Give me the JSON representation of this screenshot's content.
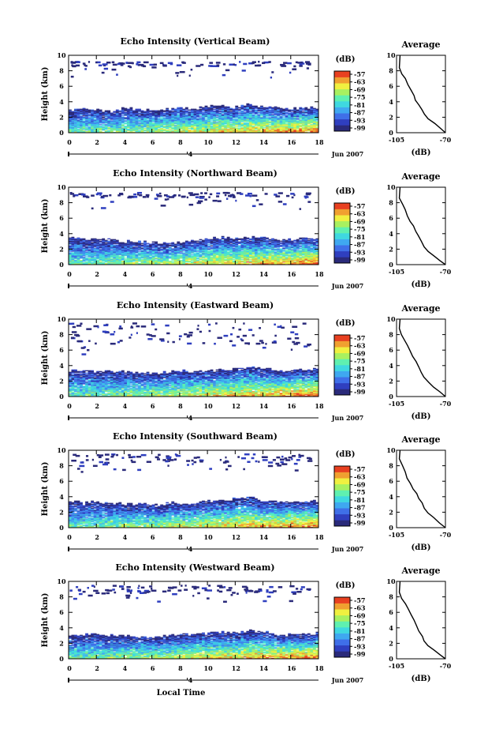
{
  "figure": {
    "xlabel": "Local Time",
    "date_label": "Jun 2007",
    "day_marker": "4",
    "x_ticks": [
      "0",
      "2",
      "4",
      "6",
      "8",
      "10",
      "12",
      "14",
      "16",
      "18"
    ],
    "y_ticks": [
      "0",
      "2",
      "4",
      "6",
      "8",
      "10"
    ],
    "ylabel": "Height (km)",
    "cbar_unit": "(dB)",
    "cbar_ticks": [
      "-57",
      "-63",
      "-69",
      "-75",
      "-81",
      "-87",
      "-93",
      "-99"
    ],
    "avg_title": "Average",
    "avg_xticks": [
      "-105",
      "-70"
    ],
    "avg_xlabel": "(dB)",
    "colors": {
      "colormap": [
        "#2a2a7a",
        "#2f3fbf",
        "#3f6fe8",
        "#3fa8f0",
        "#3fd8e0",
        "#5ff0b0",
        "#a8f060",
        "#f0f040",
        "#f0a030",
        "#e84020"
      ]
    }
  },
  "chart_data": [
    {
      "type": "heatmap",
      "title": "Echo Intensity (Vertical Beam)",
      "xlabel": "",
      "ylabel": "Height (km)",
      "xlim": [
        0,
        18
      ],
      "ylim": [
        0,
        10
      ],
      "clim": [
        -99,
        -57
      ],
      "profile_top_km": [
        2.9,
        3.1,
        3.0,
        2.8,
        3.2,
        3.0,
        2.9,
        3.0,
        3.2,
        3.1,
        3.4,
        3.5,
        3.3,
        3.6,
        3.4,
        3.2,
        3.0,
        3.3
      ],
      "upper_cloud_km": [
        8.7,
        9.3
      ]
    },
    {
      "type": "line",
      "title": "Average",
      "xlabel": "(dB)",
      "xlim": [
        -105,
        -70
      ],
      "ylim": [
        0,
        10
      ],
      "x": [
        -70,
        -74,
        -78,
        -82,
        -85,
        -87,
        -89,
        -91,
        -93,
        -95,
        -97,
        -99,
        -101,
        -103
      ],
      "y": [
        0,
        0.6,
        1.2,
        1.8,
        2.4,
        3.0,
        3.6,
        4.2,
        4.8,
        5.5,
        6.2,
        7.0,
        7.6,
        8.4
      ]
    },
    {
      "type": "heatmap",
      "title": "Echo Intensity (Northward Beam)",
      "xlabel": "",
      "ylabel": "Height (km)",
      "xlim": [
        0,
        18
      ],
      "ylim": [
        0,
        10
      ],
      "clim": [
        -99,
        -57
      ],
      "profile_top_km": [
        3.6,
        3.4,
        3.3,
        3.2,
        3.0,
        3.0,
        2.9,
        2.8,
        2.9,
        3.1,
        3.3,
        3.5,
        3.4,
        3.6,
        3.5,
        3.3,
        3.2,
        3.4
      ],
      "upper_cloud_km": [
        8.8,
        9.4
      ]
    },
    {
      "type": "line",
      "title": "Average",
      "xlabel": "(dB)",
      "xlim": [
        -105,
        -70
      ],
      "ylim": [
        0,
        10
      ],
      "x": [
        -70,
        -74,
        -78,
        -82,
        -85,
        -87,
        -89,
        -91,
        -93,
        -95,
        -97,
        -99,
        -101,
        -103
      ],
      "y": [
        0,
        0.5,
        1.1,
        1.7,
        2.3,
        3.0,
        3.7,
        4.3,
        5.0,
        5.6,
        6.3,
        7.1,
        7.8,
        8.6
      ]
    },
    {
      "type": "heatmap",
      "title": "Echo Intensity (Eastward Beam)",
      "xlabel": "",
      "ylabel": "Height (km)",
      "xlim": [
        0,
        18
      ],
      "ylim": [
        0,
        10
      ],
      "clim": [
        -99,
        -57
      ],
      "profile_top_km": [
        3.3,
        3.4,
        3.3,
        3.2,
        3.2,
        3.1,
        3.0,
        3.1,
        3.3,
        3.2,
        3.3,
        3.5,
        3.6,
        3.9,
        3.7,
        3.4,
        3.3,
        3.5
      ],
      "upper_cloud_km": [
        6.9,
        9.6
      ]
    },
    {
      "type": "line",
      "title": "Average",
      "xlabel": "(dB)",
      "xlim": [
        -105,
        -70
      ],
      "ylim": [
        0,
        10
      ],
      "x": [
        -70,
        -74,
        -78,
        -82,
        -85,
        -87,
        -89,
        -91,
        -93,
        -95,
        -97,
        -99,
        -101,
        -103
      ],
      "y": [
        0,
        0.6,
        1.2,
        1.8,
        2.5,
        3.1,
        3.8,
        4.5,
        5.2,
        5.9,
        6.6,
        7.3,
        8.0,
        8.8
      ]
    },
    {
      "type": "heatmap",
      "title": "Echo Intensity (Southward Beam)",
      "xlabel": "",
      "ylabel": "Height (km)",
      "xlim": [
        0,
        18
      ],
      "ylim": [
        0,
        10
      ],
      "clim": [
        -99,
        -57
      ],
      "profile_top_km": [
        3.4,
        3.3,
        3.4,
        3.2,
        3.1,
        3.0,
        3.0,
        3.1,
        3.3,
        3.2,
        3.4,
        3.5,
        3.7,
        4.0,
        3.6,
        3.3,
        3.2,
        3.4
      ],
      "upper_cloud_km": [
        8.5,
        9.6
      ]
    },
    {
      "type": "line",
      "title": "Average",
      "xlabel": "(dB)",
      "xlim": [
        -105,
        -70
      ],
      "ylim": [
        0,
        10
      ],
      "x": [
        -70,
        -74,
        -78,
        -82,
        -85,
        -87,
        -89,
        -91,
        -93,
        -95,
        -97,
        -99,
        -101,
        -103
      ],
      "y": [
        0,
        0.6,
        1.3,
        1.9,
        2.5,
        3.2,
        3.8,
        4.4,
        5.0,
        5.7,
        6.4,
        7.2,
        8.0,
        8.9
      ]
    },
    {
      "type": "heatmap",
      "title": "Echo Intensity (Westward Beam)",
      "xlabel": "",
      "ylabel": "Height (km)",
      "xlim": [
        0,
        18
      ],
      "ylim": [
        0,
        10
      ],
      "clim": [
        -99,
        -57
      ],
      "profile_top_km": [
        3.2,
        3.1,
        3.3,
        3.0,
        3.0,
        2.9,
        2.9,
        3.0,
        3.2,
        3.1,
        3.3,
        3.5,
        3.4,
        3.6,
        3.5,
        3.2,
        3.1,
        3.3
      ],
      "upper_cloud_km": [
        8.6,
        9.6
      ]
    },
    {
      "type": "line",
      "title": "Average",
      "xlabel": "(dB)",
      "xlim": [
        -105,
        -70
      ],
      "ylim": [
        0,
        10
      ],
      "x": [
        -70,
        -74,
        -78,
        -82,
        -85,
        -87,
        -89,
        -91,
        -93,
        -95,
        -97,
        -99,
        -101,
        -103
      ],
      "y": [
        0,
        0.5,
        1.1,
        1.7,
        2.3,
        2.9,
        3.6,
        4.3,
        5.0,
        5.7,
        6.4,
        7.1,
        7.8,
        8.6
      ]
    }
  ]
}
